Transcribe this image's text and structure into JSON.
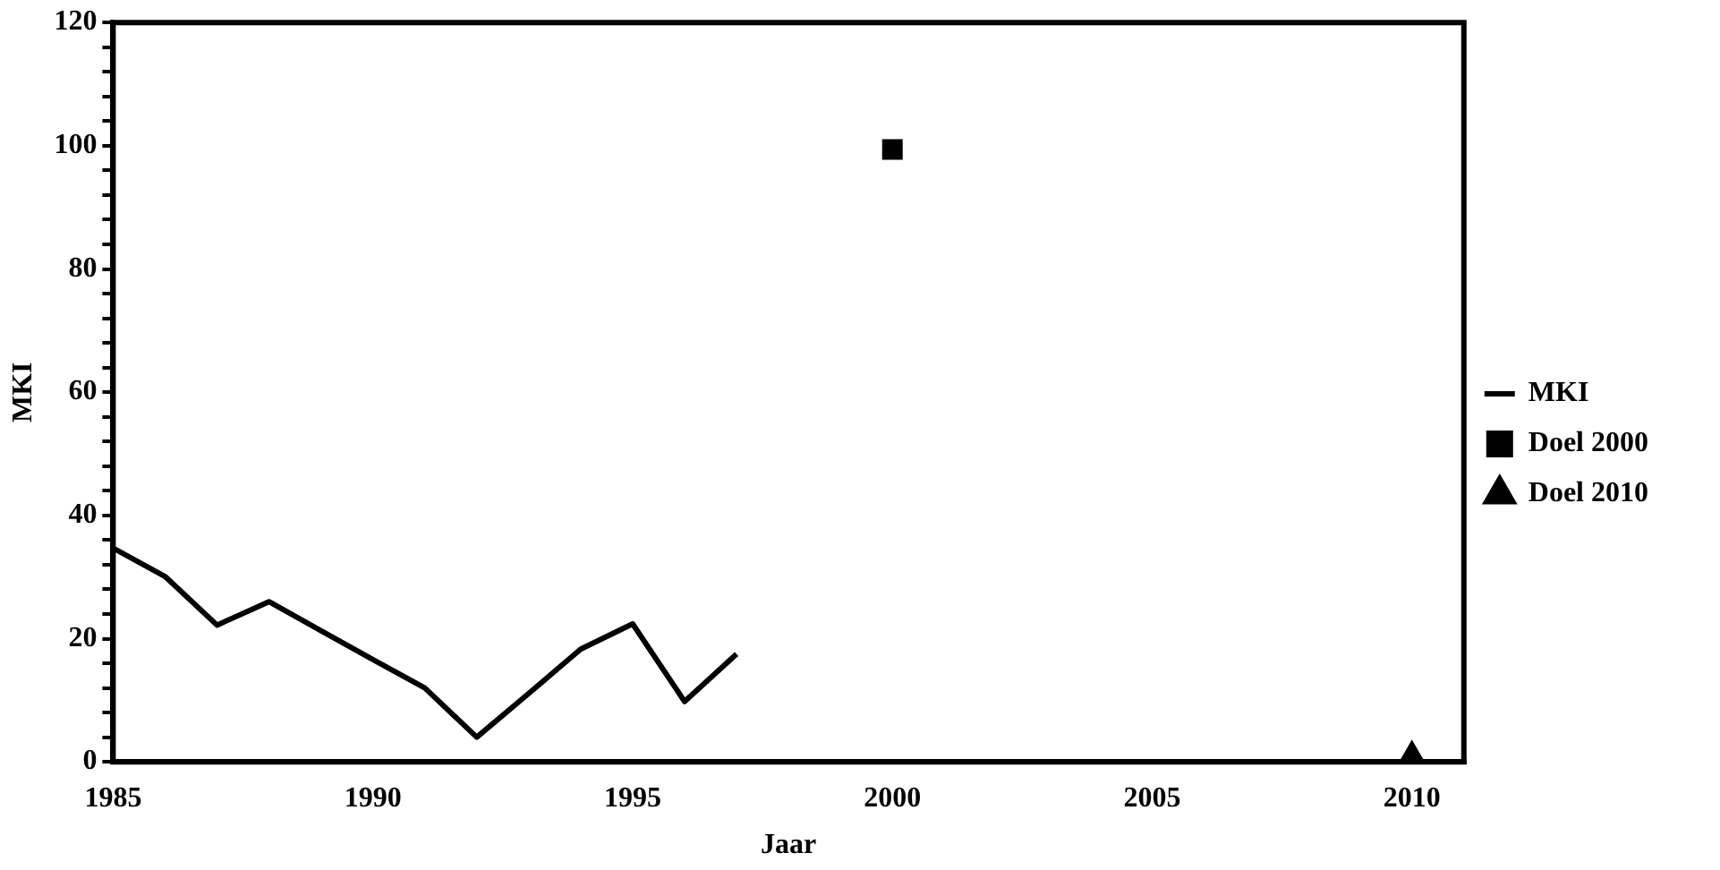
{
  "chart_data": {
    "type": "line",
    "xlabel": "Jaar",
    "ylabel": "MKI",
    "x": [
      1985,
      1986,
      1987,
      1988,
      1989,
      1990,
      1991,
      1992,
      1993,
      1994,
      1995,
      1996,
      1997
    ],
    "series": [
      {
        "name": "MKI",
        "color": "#000000",
        "marker": "none",
        "values": [
          34.7,
          30.1,
          22.2,
          26.0,
          21.3,
          16.6,
          12.0,
          4.0,
          11.1,
          18.3,
          22.4,
          9.8,
          17.5
        ]
      },
      {
        "name": "Doel 2000",
        "type": "scatter",
        "color": "#000000",
        "marker": "square",
        "x": [
          2000
        ],
        "values": [
          99.4
        ]
      },
      {
        "name": "Doel 2010",
        "type": "scatter",
        "color": "#000000",
        "marker": "triangle",
        "x": [
          2010
        ],
        "values": [
          1
        ]
      }
    ],
    "xlim": [
      1985,
      2011
    ],
    "xticks": [
      1985,
      1990,
      1995,
      2000,
      2005,
      2010
    ],
    "ylim": [
      0,
      120
    ],
    "yticks": [
      0,
      {
        "value": 4,
        "label": null
      },
      {
        "value": 8,
        "label": null
      },
      {
        "value": 12,
        "label": null
      },
      {
        "value": 16,
        "label": null
      },
      20,
      {
        "value": 24,
        "label": null
      },
      {
        "value": 28,
        "label": null
      },
      {
        "value": 32,
        "label": null
      },
      {
        "value": 36,
        "label": null
      },
      40,
      {
        "value": 44,
        "label": null
      },
      {
        "value": 48,
        "label": null
      },
      {
        "value": 52,
        "label": null
      },
      {
        "value": 56,
        "label": null
      },
      60,
      {
        "value": 64,
        "label": null
      },
      {
        "value": 68,
        "label": null
      },
      {
        "value": 72,
        "label": null
      },
      {
        "value": 76,
        "label": null
      },
      80,
      {
        "value": 84,
        "label": null
      },
      {
        "value": 88,
        "label": null
      },
      {
        "value": 92,
        "label": null
      },
      {
        "value": 96,
        "label": null
      },
      100,
      {
        "value": 104,
        "label": null
      },
      {
        "value": 108,
        "label": null
      },
      {
        "value": 112,
        "label": null
      },
      {
        "value": 116,
        "label": null
      },
      120
    ],
    "grid": false,
    "legend": "right"
  }
}
